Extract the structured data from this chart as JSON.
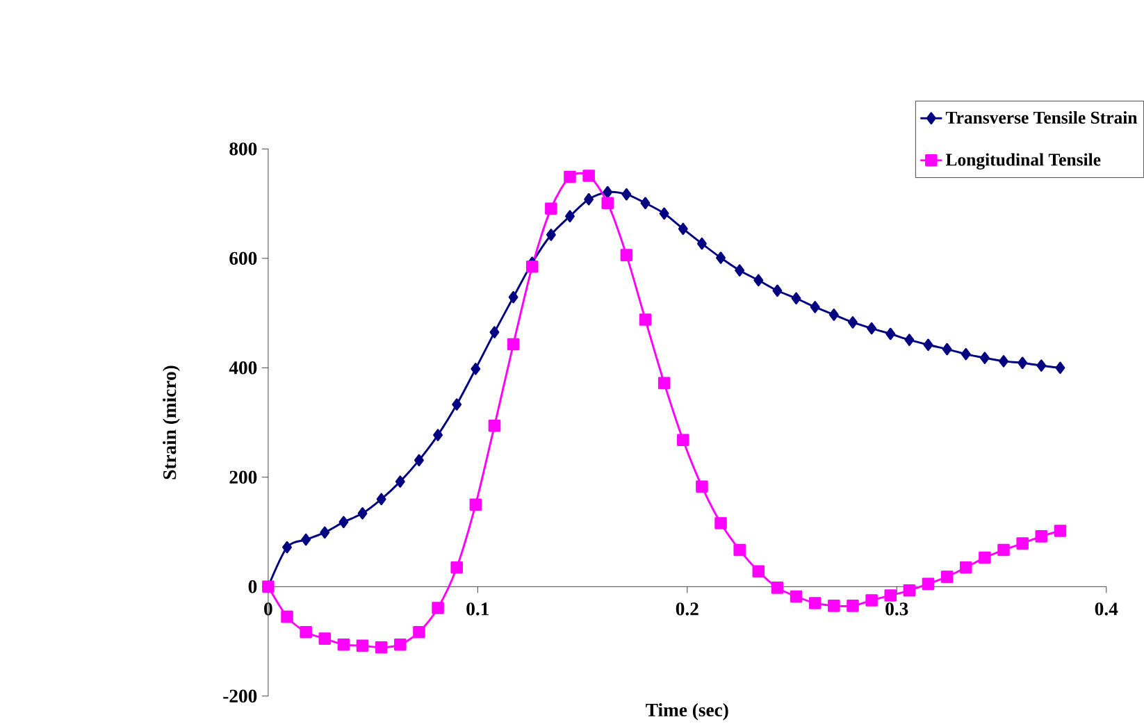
{
  "chart_data": {
    "type": "line",
    "xlabel": "Time (sec)",
    "ylabel": "Strain (micro)",
    "x": [
      0,
      0.009,
      0.018,
      0.027,
      0.036,
      0.045,
      0.054,
      0.063,
      0.072,
      0.081,
      0.09,
      0.099,
      0.108,
      0.117,
      0.126,
      0.135,
      0.144,
      0.153,
      0.162,
      0.171,
      0.18,
      0.189,
      0.198,
      0.207,
      0.216,
      0.225,
      0.234,
      0.243,
      0.252,
      0.261,
      0.27,
      0.279,
      0.288,
      0.297,
      0.306,
      0.315,
      0.324,
      0.333,
      0.342,
      0.351,
      0.36,
      0.369,
      0.378
    ],
    "series": [
      {
        "name": "Transverse Tensile Strain",
        "color": "#000080",
        "marker": "diamond",
        "values": [
          0,
          72,
          86,
          99,
          118,
          134,
          160,
          192,
          231,
          277,
          333,
          398,
          465,
          529,
          592,
          643,
          677,
          708,
          721,
          717,
          701,
          682,
          654,
          627,
          601,
          578,
          560,
          541,
          527,
          511,
          497,
          483,
          472,
          462,
          451,
          442,
          434,
          425,
          418,
          412,
          409,
          404,
          400
        ]
      },
      {
        "name": "Longitudinal Tensile",
        "color": "#ff00ff",
        "marker": "square",
        "values": [
          0,
          -55,
          -83,
          -95,
          -106,
          -108,
          -111,
          -106,
          -83,
          -39,
          35,
          150,
          294,
          443,
          585,
          691,
          749,
          751,
          701,
          606,
          488,
          372,
          268,
          183,
          116,
          67,
          28,
          -2,
          -18,
          -30,
          -35,
          -35,
          -25,
          -16,
          -7,
          5,
          18,
          35,
          53,
          67,
          79,
          92,
          102
        ]
      }
    ],
    "xlim": [
      0,
      0.4
    ],
    "xticks": [
      0,
      0.1,
      0.2,
      0.3,
      0.4
    ],
    "ylim": [
      -200,
      800
    ],
    "yticks": [
      -200,
      0,
      200,
      400,
      600,
      800
    ],
    "grid": false,
    "legend": "top right",
    "line_style": "solid"
  }
}
